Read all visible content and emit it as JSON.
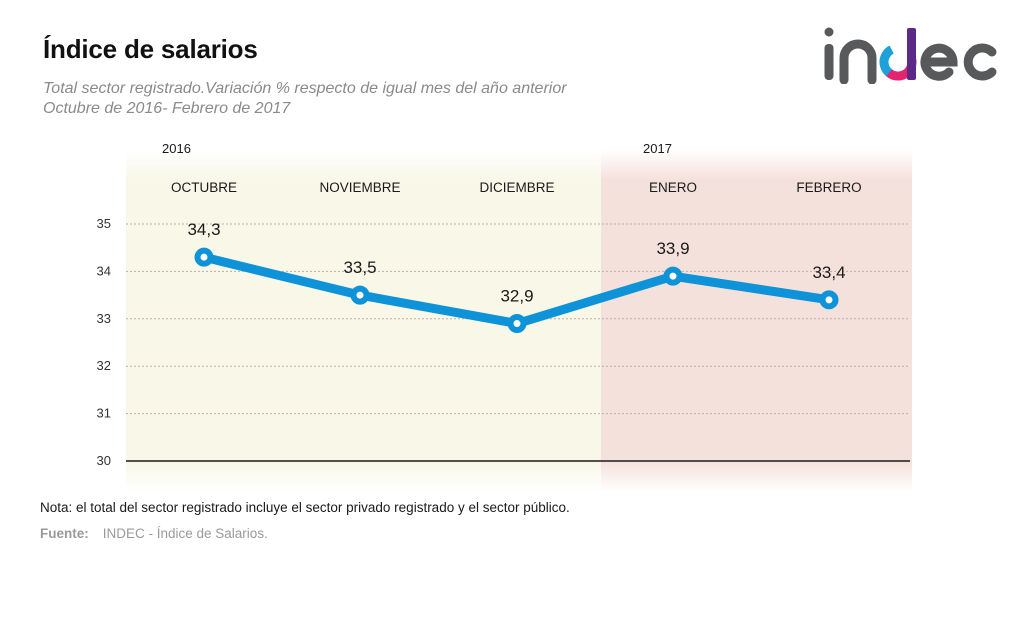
{
  "header": {
    "title": "Índice de salarios",
    "subtitle_line1": "Total sector registrado.Variación % respecto de igual mes del año anterior",
    "subtitle_line2": "Octubre de 2016- Febrero de 2017"
  },
  "logo": {
    "text": "indec",
    "colors": {
      "text": "#58595b",
      "accent_blue": "#1ea0d8",
      "accent_purple": "#5b2a86",
      "accent_pink": "#e5236f"
    }
  },
  "chart_data": {
    "type": "line",
    "title": "Índice de salarios",
    "subtitle": "Total sector registrado.Variación % respecto de igual mes del año anterior",
    "xlabel": "",
    "ylabel": "",
    "categories": [
      "OCTUBRE",
      "NOVIEMBRE",
      "DICIEMBRE",
      "ENERO",
      "FEBRERO"
    ],
    "year_groups": [
      {
        "year": "2016",
        "months": [
          "OCTUBRE",
          "NOVIEMBRE",
          "DICIEMBRE"
        ],
        "background": "#f8f7e8"
      },
      {
        "year": "2017",
        "months": [
          "ENERO",
          "FEBRERO"
        ],
        "background": "#f5e1dc"
      }
    ],
    "series": [
      {
        "name": "Total sector registrado",
        "values": [
          34.3,
          33.5,
          32.9,
          33.9,
          33.4
        ],
        "labels": [
          "34,3",
          "33,5",
          "32,9",
          "33,9",
          "33,4"
        ],
        "color": "#0f93d8"
      }
    ],
    "ylim": [
      30,
      35
    ],
    "yticks": [
      35,
      34,
      33,
      32,
      31,
      30
    ],
    "grid": true,
    "legend": "none"
  },
  "footer": {
    "note": "Nota: el total del sector registrado incluye el sector privado registrado y el sector público.",
    "source_label": "Fuente:",
    "source_text": "INDEC - Índice de Salarios."
  }
}
